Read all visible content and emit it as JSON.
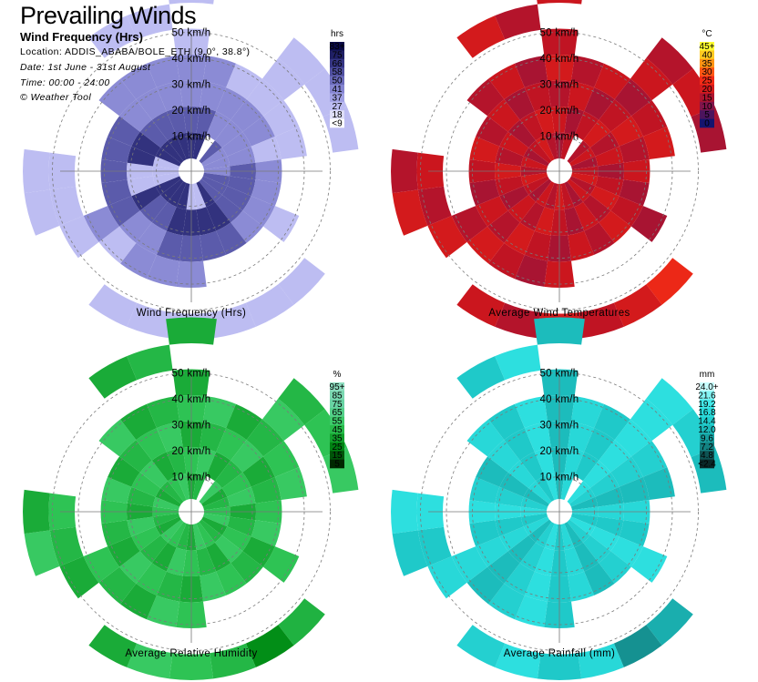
{
  "header": {
    "title": "Prevailing Winds",
    "subtitle": "Wind Frequency (Hrs)",
    "location": "Location: ADDIS_ABABA/BOLE_ETH (9.0°, 38.8°)",
    "date": "Date: 1st June - 31st August",
    "time": "Time: 00:00 - 24:00",
    "credit": "© Weather Tool"
  },
  "chart_data": [
    {
      "type": "polar-heatmap",
      "title": "Wind Frequency (Hrs)",
      "ring_labels": [
        "10 km/h",
        "20 km/h",
        "30 km/h",
        "40 km/h",
        "50 km/h"
      ],
      "speed_rings": [
        10,
        20,
        30,
        40,
        50
      ],
      "direction_sectors": 24,
      "legend_unit": "hrs",
      "legend_labels": [
        "83+",
        "75",
        "66",
        "58",
        "50",
        "41",
        "37",
        "27",
        "18",
        "<9"
      ],
      "ramp": [
        "#ffffff",
        "#b4b4f0",
        "#7878c8",
        "#3c3c8c",
        "#0a0a46"
      ]
    },
    {
      "type": "polar-heatmap",
      "title": "Average Wind Temperatures",
      "ring_labels": [
        "10 km/h",
        "20 km/h",
        "30 km/h",
        "40 km/h",
        "50 km/h"
      ],
      "speed_rings": [
        10,
        20,
        30,
        40,
        50
      ],
      "direction_sectors": 24,
      "legend_unit": "°C",
      "legend_labels": [
        "45+",
        "40",
        "35",
        "30",
        "25",
        "20",
        "15",
        "10",
        "5",
        "0"
      ],
      "ramp": [
        "#14146e",
        "#781450",
        "#c8141e",
        "#ff3214",
        "#ffa014",
        "#ffff32"
      ]
    },
    {
      "type": "polar-heatmap",
      "title": "Average Relative Humidity",
      "ring_labels": [
        "10 km/h",
        "20 km/h",
        "30 km/h",
        "40 km/h",
        "50 km/h"
      ],
      "speed_rings": [
        10,
        20,
        30,
        40,
        50
      ],
      "direction_sectors": 24,
      "legend_unit": "%",
      "legend_labels": [
        "95+",
        "85",
        "75",
        "65",
        "55",
        "45",
        "35",
        "25",
        "15",
        "5"
      ],
      "ramp": [
        "#002800",
        "#008c14",
        "#32c85a",
        "#64d2a0",
        "#8cdcbe"
      ]
    },
    {
      "type": "polar-heatmap",
      "title": "Average Rainfall (mm)",
      "ring_labels": [
        "10 km/h",
        "20 km/h",
        "30 km/h",
        "40 km/h",
        "50 km/h"
      ],
      "speed_rings": [
        10,
        20,
        30,
        40,
        50
      ],
      "direction_sectors": 24,
      "legend_unit": "mm",
      "legend_labels": [
        "24.0+",
        "21.6",
        "19.2",
        "16.8",
        "14.4",
        "12.0",
        "9.6",
        "7.2",
        "4.8",
        "<2.4"
      ],
      "ramp": [
        "#0a2828",
        "#148c8c",
        "#1ec8c8",
        "#32e6e6",
        "#c8ffff"
      ]
    }
  ]
}
